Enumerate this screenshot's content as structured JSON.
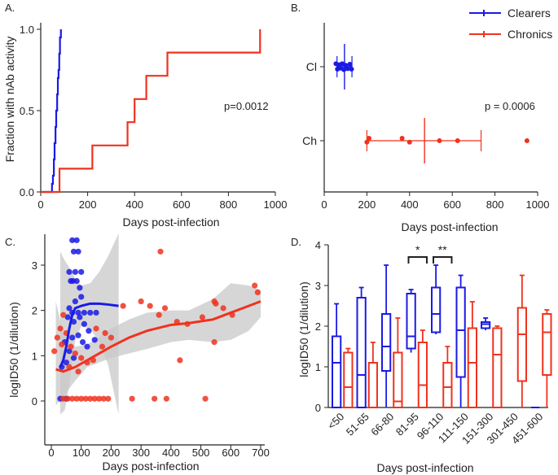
{
  "colors": {
    "clearers": "#1a1ae6",
    "chronics": "#f0321e",
    "band": "#c8c8c8",
    "axis": "#222222"
  },
  "chart_data": [
    {
      "panel": "A.",
      "type": "line",
      "subtype": "step",
      "xlabel": "Days post-infection",
      "ylabel": "Fraction with nAb activity",
      "xlim": [
        0,
        1000
      ],
      "ylim": [
        0,
        1.0
      ],
      "xticks": [
        "0",
        "200",
        "400",
        "600",
        "800",
        "1000"
      ],
      "yticks": [
        "0.0",
        "0.5",
        "1.0"
      ],
      "annotation": "p=0.0012",
      "series": [
        {
          "name": "Clearers",
          "x": [
            0,
            48,
            52,
            56,
            59,
            63,
            66,
            70,
            73,
            76,
            79,
            82,
            86
          ],
          "y": [
            0,
            0.05,
            0.1,
            0.2,
            0.3,
            0.4,
            0.5,
            0.6,
            0.7,
            0.75,
            0.85,
            0.95,
            1.0
          ]
        },
        {
          "name": "Chronics",
          "x": [
            0,
            80,
            220,
            370,
            400,
            450,
            540,
            935
          ],
          "y": [
            0,
            0.143,
            0.286,
            0.429,
            0.571,
            0.714,
            0.857,
            1.0
          ]
        }
      ]
    },
    {
      "panel": "B.",
      "type": "scatter",
      "xlabel": "Days post-infection",
      "xlim": [
        0,
        1000
      ],
      "xticks": [
        "0",
        "200",
        "400",
        "600",
        "800",
        "1000"
      ],
      "categories": [
        "Cl",
        "Ch"
      ],
      "annotation": "p = 0.0006",
      "legend": [
        "Clearers",
        "Chronics"
      ],
      "series": [
        {
          "name": "Clearers",
          "category": "Cl",
          "x": [
            55,
            62,
            70,
            76,
            84,
            92,
            100,
            110,
            120,
            128
          ],
          "jitter": [
            0.06,
            -0.05,
            0.04,
            -0.03,
            0.06,
            -0.06,
            0.03,
            -0.04,
            0.05,
            -0.05
          ],
          "mean": 95,
          "sd_low": 60,
          "sd_high": 130
        },
        {
          "name": "Chronics",
          "category": "Ch",
          "x": [
            200,
            210,
            365,
            400,
            540,
            625,
            950
          ],
          "jitter": [
            -0.03,
            0.05,
            0.05,
            -0.03,
            0.0,
            0.0,
            0.0
          ],
          "mean": 470,
          "sd_low": 200,
          "sd_high": 735
        }
      ]
    },
    {
      "panel": "C.",
      "type": "scatter",
      "xlabel": "Days post-infection",
      "ylabel": "logID50 (1/dilution)",
      "xlim": [
        -10,
        720
      ],
      "ylim": [
        -0.35,
        3.6
      ],
      "xticks": [
        "0",
        "100",
        "200",
        "300",
        "400",
        "500",
        "600",
        "700"
      ],
      "yticks": [
        "0",
        "1",
        "2",
        "3"
      ],
      "series": [
        {
          "name": "Clearers",
          "points": [
            [
              30,
              0.05
            ],
            [
              50,
              0.05
            ],
            [
              70,
              3.55
            ],
            [
              85,
              3.55
            ],
            [
              75,
              3.3
            ],
            [
              90,
              3.3
            ],
            [
              60,
              2.85
            ],
            [
              80,
              2.85
            ],
            [
              100,
              2.85
            ],
            [
              65,
              2.65
            ],
            [
              72,
              2.65
            ],
            [
              85,
              2.65
            ],
            [
              95,
              2.5
            ],
            [
              100,
              2.3
            ],
            [
              80,
              2.2
            ],
            [
              60,
              2.05
            ],
            [
              70,
              1.95
            ],
            [
              90,
              1.95
            ],
            [
              110,
              1.95
            ],
            [
              130,
              1.95
            ],
            [
              150,
              1.95
            ],
            [
              55,
              1.85
            ],
            [
              75,
              1.75
            ],
            [
              95,
              1.85
            ],
            [
              110,
              1.7
            ],
            [
              125,
              1.55
            ],
            [
              70,
              1.4
            ],
            [
              90,
              1.45
            ],
            [
              105,
              1.3
            ],
            [
              45,
              1.3
            ],
            [
              60,
              1.1
            ],
            [
              120,
              1.2
            ],
            [
              145,
              1.35
            ],
            [
              75,
              0.95
            ],
            [
              35,
              0.75
            ],
            [
              50,
              0.85
            ]
          ]
        },
        {
          "name": "Chronics",
          "points": [
            [
              10,
              1.1
            ],
            [
              20,
              1.4
            ],
            [
              40,
              1.9
            ],
            [
              30,
              1.6
            ],
            [
              50,
              1.5
            ],
            [
              35,
              1.25
            ],
            [
              65,
              1.2
            ],
            [
              80,
              1.05
            ],
            [
              100,
              0.95
            ],
            [
              120,
              0.85
            ],
            [
              140,
              0.9
            ],
            [
              60,
              0.75
            ],
            [
              90,
              0.65
            ],
            [
              170,
              1.2
            ],
            [
              150,
              1.6
            ],
            [
              180,
              1.5
            ],
            [
              200,
              1.4
            ],
            [
              240,
              2.1
            ],
            [
              300,
              2.2
            ],
            [
              330,
              2.1
            ],
            [
              360,
              1.9
            ],
            [
              380,
              2.05
            ],
            [
              420,
              1.75
            ],
            [
              455,
              1.7
            ],
            [
              505,
              1.85
            ],
            [
              545,
              2.2
            ],
            [
              550,
              2.15
            ],
            [
              545,
              1.3
            ],
            [
              575,
              2.05
            ],
            [
              605,
              1.9
            ],
            [
              680,
              2.55
            ],
            [
              690,
              2.4
            ],
            [
              365,
              3.3
            ],
            [
              430,
              0.9
            ],
            [
              40,
              0.05
            ],
            [
              55,
              0.05
            ],
            [
              70,
              0.05
            ],
            [
              85,
              0.05
            ],
            [
              100,
              0.05
            ],
            [
              115,
              0.05
            ],
            [
              130,
              0.05
            ],
            [
              145,
              0.05
            ],
            [
              160,
              0.05
            ],
            [
              175,
              0.05
            ],
            [
              190,
              0.05
            ],
            [
              270,
              0.05
            ],
            [
              345,
              0.05
            ],
            [
              385,
              0.05
            ],
            [
              515,
              0.05
            ]
          ]
        }
      ],
      "fit_lines": [
        {
          "name": "Clearers",
          "x": [
            30,
            40,
            50,
            60,
            70,
            80,
            100,
            130,
            160,
            190,
            225
          ],
          "y": [
            0.75,
            0.9,
            1.2,
            1.6,
            1.9,
            2.05,
            2.1,
            2.15,
            2.15,
            2.13,
            2.1
          ]
        },
        {
          "name": "Chronics",
          "x": [
            15,
            40,
            80,
            120,
            160,
            200,
            260,
            320,
            400,
            460,
            540,
            600,
            660,
            700
          ],
          "y": [
            0.7,
            0.65,
            0.75,
            0.9,
            1.05,
            1.2,
            1.4,
            1.55,
            1.68,
            1.72,
            1.8,
            1.95,
            2.1,
            2.2
          ]
        }
      ],
      "confidence_band": {
        "x": [
          15,
          40,
          80,
          120,
          160,
          200,
          260,
          320,
          400,
          460,
          540,
          600,
          660,
          700
        ],
        "upper": [
          2.2,
          1.5,
          1.2,
          1.25,
          1.4,
          1.6,
          1.8,
          1.95,
          2.0,
          2.0,
          2.25,
          2.6,
          2.55,
          2.45
        ],
        "lower": [
          -0.1,
          0.1,
          0.45,
          0.75,
          0.85,
          0.95,
          1.05,
          1.15,
          1.3,
          1.35,
          1.3,
          1.35,
          1.55,
          1.85
        ]
      },
      "confidence_band_clearers": {
        "x": [
          30,
          45,
          60,
          80,
          100,
          130,
          160,
          190,
          225
        ],
        "upper": [
          3.3,
          3.1,
          2.95,
          2.7,
          2.55,
          2.6,
          2.85,
          3.2,
          3.7
        ],
        "lower": [
          -0.3,
          -0.2,
          0.35,
          1.35,
          1.65,
          1.6,
          1.3,
          0.8,
          -0.3
        ]
      }
    },
    {
      "panel": "D.",
      "type": "box",
      "xlabel": "Days post-infection",
      "ylabel": "logID50 (1/dilution)",
      "ylim": [
        0,
        4
      ],
      "yticks": [
        "0",
        "1",
        "2",
        "3",
        "4"
      ],
      "categories": [
        "<50",
        "51-65",
        "66-80",
        "81-95",
        "96-110",
        "111-150",
        "151-300",
        "301-450",
        "451-600"
      ],
      "significance": [
        {
          "category": "81-95",
          "label": "*"
        },
        {
          "category": "96-110",
          "label": "**"
        }
      ],
      "series": [
        {
          "name": "Clearers",
          "boxes": [
            {
              "min": 0,
              "q1": 0,
              "median": 1.1,
              "q3": 1.75,
              "max": 2.55
            },
            {
              "min": 0,
              "q1": 0,
              "median": 0.8,
              "q3": 2.7,
              "max": 2.95
            },
            {
              "min": 0,
              "q1": 0.9,
              "median": 1.5,
              "q3": 2.3,
              "max": 3.5
            },
            {
              "min": 1.35,
              "q1": 1.45,
              "median": 1.75,
              "q3": 2.8,
              "max": 2.9
            },
            {
              "min": 1.8,
              "q1": 1.85,
              "median": 2.3,
              "q3": 2.95,
              "max": 3.5
            },
            {
              "min": 0,
              "q1": 0.75,
              "median": 1.9,
              "q3": 2.95,
              "max": 3.25
            },
            {
              "min": 1.9,
              "q1": 1.95,
              "median": 2.05,
              "q3": 2.1,
              "max": 2.2
            },
            null,
            {
              "min": 0,
              "q1": 0,
              "median": 0,
              "q3": 0,
              "max": 0
            }
          ]
        },
        {
          "name": "Chronics",
          "boxes": [
            {
              "min": 0,
              "q1": 0,
              "median": 0.5,
              "q3": 1.35,
              "max": 1.45
            },
            {
              "min": 0,
              "q1": 0,
              "median": 0,
              "q3": 1.1,
              "max": 1.6
            },
            {
              "min": 0,
              "q1": 0,
              "median": 0.15,
              "q3": 1.35,
              "max": 2.2
            },
            {
              "min": 0,
              "q1": 0,
              "median": 0.55,
              "q3": 1.6,
              "max": 1.9
            },
            {
              "min": 0,
              "q1": 0,
              "median": 0.5,
              "q3": 1.1,
              "max": 1.5
            },
            {
              "min": 0,
              "q1": 0,
              "median": 1.1,
              "q3": 1.95,
              "max": 2.6
            },
            {
              "min": 0,
              "q1": 0,
              "median": 1.3,
              "q3": 1.95,
              "max": 2.0
            },
            {
              "min": 0,
              "q1": 0.65,
              "median": 1.8,
              "q3": 2.45,
              "max": 3.25
            },
            {
              "min": 0,
              "q1": 0.8,
              "median": 1.85,
              "q3": 2.3,
              "max": 2.4
            }
          ]
        }
      ]
    }
  ]
}
